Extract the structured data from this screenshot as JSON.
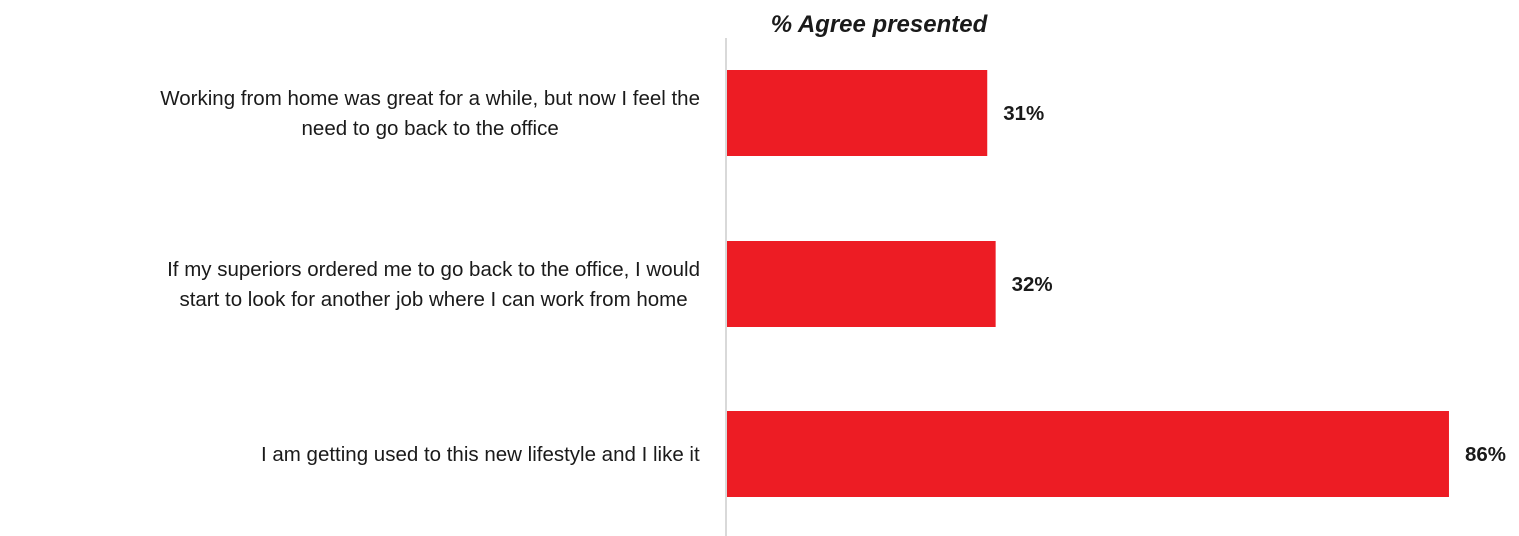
{
  "chart_data": {
    "type": "bar",
    "orientation": "horizontal",
    "title": "% Agree presented",
    "xlabel": "",
    "ylabel": "",
    "xlim": [
      0,
      90
    ],
    "grid": false,
    "legend": "none",
    "bar_color": "#ED1C24",
    "axis_color": "#D9D9D9",
    "categories": [
      [
        "Working from home was great for a while, but now I feel the",
        "need to go back to the office"
      ],
      [
        "If my superiors ordered me to go back to the office, I would",
        "start to look for another job where I can work from home"
      ],
      [
        "I am getting used to this new lifestyle and I like it"
      ]
    ],
    "values": [
      31,
      32,
      86
    ],
    "value_labels": [
      "31%",
      "32%",
      "86%"
    ]
  }
}
